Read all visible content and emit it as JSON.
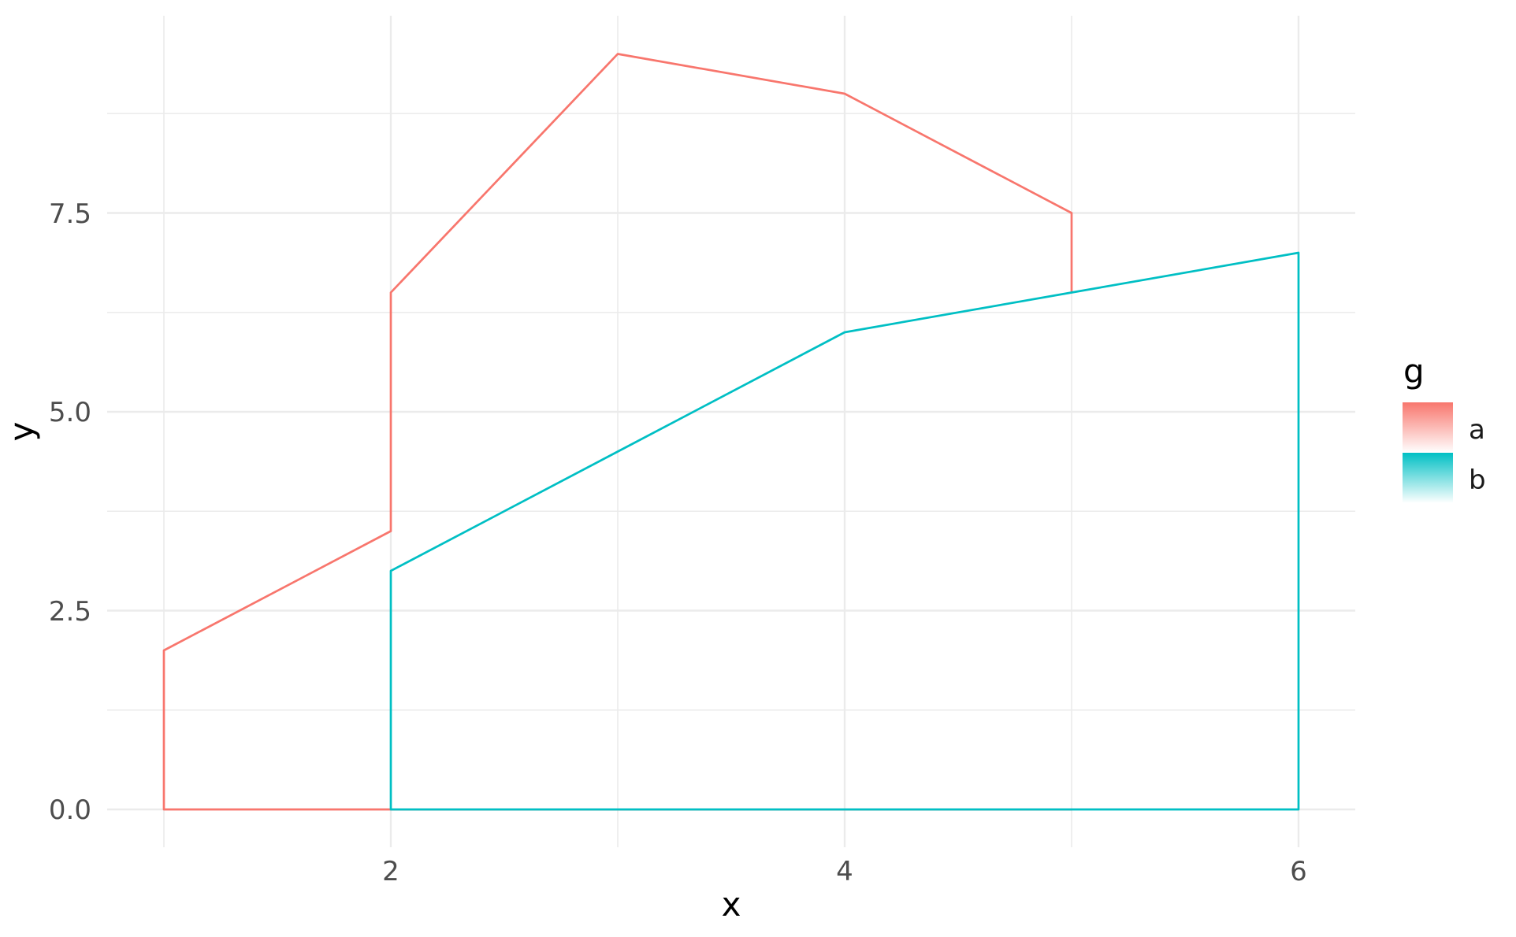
{
  "chart_data": {
    "type": "area",
    "title": "",
    "xlabel": "x",
    "ylabel": "y",
    "legend_title": "g",
    "legend_position": "right",
    "grid": "major+minor",
    "xlim": [
      0.75,
      6.25
    ],
    "ylim": [
      -0.475,
      9.975
    ],
    "x_major_ticks": [
      2,
      4,
      6
    ],
    "y_major_ticks": [
      0.0,
      2.5,
      5.0,
      7.5
    ],
    "fill_style": "vertical gradient per area: solid series color at its top fading to white/transparent at y=0; gridlines faintly visible through fill",
    "series": [
      {
        "name": "a",
        "color": "#F8766D",
        "x": [
          1,
          2,
          2,
          3,
          4,
          5
        ],
        "y": [
          2.0,
          3.5,
          6.5,
          9.5,
          9.0,
          7.5
        ]
      },
      {
        "name": "b",
        "color": "#00BFC4",
        "x": [
          2,
          3,
          4,
          5,
          6
        ],
        "y": [
          3.0,
          4.5,
          6.0,
          6.5,
          7.0
        ]
      }
    ]
  },
  "axis": {
    "x_title": "x",
    "y_title": "y",
    "x_tick_labels": [
      "2",
      "4",
      "6"
    ],
    "y_tick_labels": [
      "0.0",
      "2.5",
      "5.0",
      "7.5"
    ]
  },
  "legend": {
    "title": "g",
    "items": [
      {
        "label": "a",
        "color": "#F8766D"
      },
      {
        "label": "b",
        "color": "#00BFC4"
      }
    ]
  },
  "style": {
    "background_color": "#FFFFFF",
    "gridline_color": "#EBEBEB",
    "tick_label_color": "#4D4D4D",
    "title_color": "#000000"
  }
}
